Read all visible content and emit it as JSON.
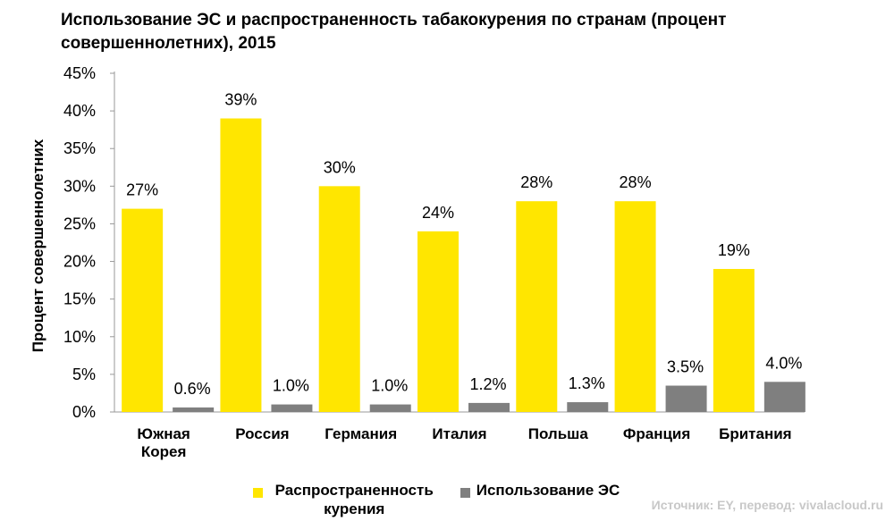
{
  "chart_data": {
    "type": "bar",
    "title": "Использование ЭС и распространенность табакокурения по странам (процент совершеннолетних), 2015",
    "ylabel": "Процент совершеннолетних",
    "xlabel": "",
    "ylim": [
      0,
      45
    ],
    "yticks": [
      "0%",
      "5%",
      "10%",
      "15%",
      "20%",
      "25%",
      "30%",
      "35%",
      "40%",
      "45%"
    ],
    "categories": [
      "Южная Корея",
      "Россия",
      "Германия",
      "Италия",
      "Польша",
      "Франция",
      "Британия"
    ],
    "series": [
      {
        "name": "Распространенность курения",
        "color": "#ffe600",
        "values": [
          27,
          39,
          30,
          24,
          28,
          28,
          19
        ],
        "labels": [
          "27%",
          "39%",
          "30%",
          "24%",
          "28%",
          "28%",
          "19%"
        ]
      },
      {
        "name": "Использование ЭС",
        "color": "#7f7f7f",
        "values": [
          0.6,
          1.0,
          1.0,
          1.2,
          1.3,
          3.5,
          4.0
        ],
        "labels": [
          "0.6%",
          "1.0%",
          "1.0%",
          "1.2%",
          "1.3%",
          "3.5%",
          "4.0%"
        ]
      }
    ],
    "grid": false,
    "legend_position": "bottom"
  },
  "source": "Источник: EY, перевод: vivalacloud.ru"
}
